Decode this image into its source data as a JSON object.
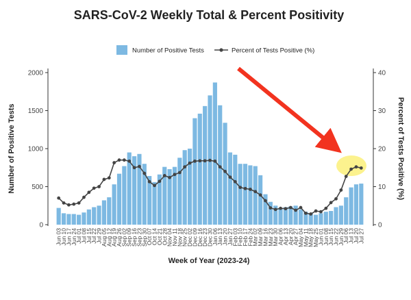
{
  "chart_data": {
    "type": "bar",
    "title": "SARS-CoV-2 Weekly Total & Percent Positivity",
    "x_label": "Week of Year (2023-24)",
    "y_label": "Number of Positive Tests",
    "y2_label": "Percent of Tests Positive (%)",
    "categories": [
      "Jun 03",
      "Jun 10",
      "Jun 17",
      "Jun 24",
      "Jul 01",
      "Jul 08",
      "Jul 15",
      "Jul 22",
      "Jul 29",
      "Aug 05",
      "Aug 12",
      "Aug 19",
      "Aug 26",
      "Sep 02",
      "Sep 09",
      "Sep 16",
      "Sep 23",
      "Sep 30",
      "Oct 07",
      "Oct 14",
      "Oct 21",
      "Oct 28",
      "Nov 04",
      "Nov 11",
      "Nov 18",
      "Nov 25",
      "Dec 02",
      "Dec 09",
      "Dec 16",
      "Dec 23",
      "Dec 30",
      "Jan 06",
      "Jan 13",
      "Jan 20",
      "Jan 27",
      "Feb 03",
      "Feb 10",
      "Feb 17",
      "Feb 24",
      "Mar 02",
      "Mar 09",
      "Mar 16",
      "Mar 23",
      "Mar 30",
      "Apr 06",
      "Apr 13",
      "Apr 20",
      "Apr 27",
      "May 04",
      "May 11",
      "May 18",
      "May 25",
      "Jun 01",
      "Jun 08",
      "Jun 15",
      "Jun 22",
      "Jun 29",
      "Jul 06",
      "Jul 13",
      "Jul 20",
      "Jul 27"
    ],
    "series": [
      {
        "name": "Number of Positive Tests",
        "type": "bar",
        "color": "#7db9e2",
        "values": [
          220,
          150,
          140,
          140,
          130,
          160,
          200,
          230,
          250,
          320,
          360,
          530,
          670,
          770,
          950,
          900,
          930,
          800,
          640,
          560,
          660,
          760,
          730,
          760,
          880,
          980,
          1000,
          1400,
          1460,
          1560,
          1700,
          1870,
          1570,
          1340,
          950,
          920,
          800,
          800,
          780,
          770,
          650,
          400,
          300,
          250,
          220,
          230,
          240,
          250,
          200,
          170,
          150,
          130,
          150,
          170,
          180,
          230,
          250,
          360,
          490,
          530,
          540
        ]
      },
      {
        "name": "Percent of Tests Positive (%)",
        "type": "line",
        "axis": "y2",
        "color": "#444444",
        "values": [
          7.0,
          5.7,
          5.2,
          5.4,
          5.7,
          7.2,
          8.5,
          9.6,
          10.0,
          11.9,
          12.3,
          16.3,
          17.0,
          17.0,
          16.7,
          15.0,
          15.3,
          13.5,
          11.3,
          10.3,
          11.4,
          12.9,
          12.4,
          13.2,
          13.7,
          15.2,
          16.2,
          16.7,
          16.8,
          16.8,
          16.9,
          16.7,
          15.2,
          14.0,
          12.5,
          11.3,
          9.8,
          9.5,
          9.3,
          8.7,
          7.8,
          6.3,
          4.4,
          4.0,
          4.3,
          4.2,
          4.5,
          3.8,
          4.5,
          3.0,
          2.8,
          3.6,
          3.4,
          4.3,
          5.8,
          6.8,
          9.1,
          12.7,
          14.6,
          15.2,
          14.9
        ]
      }
    ],
    "ylim": [
      0,
      2000
    ],
    "yticks": [
      0,
      500,
      1000,
      1500,
      2000
    ],
    "y2lim": [
      0,
      40
    ],
    "y2ticks": [
      0,
      10,
      20,
      30,
      40
    ],
    "grid": false
  }
}
